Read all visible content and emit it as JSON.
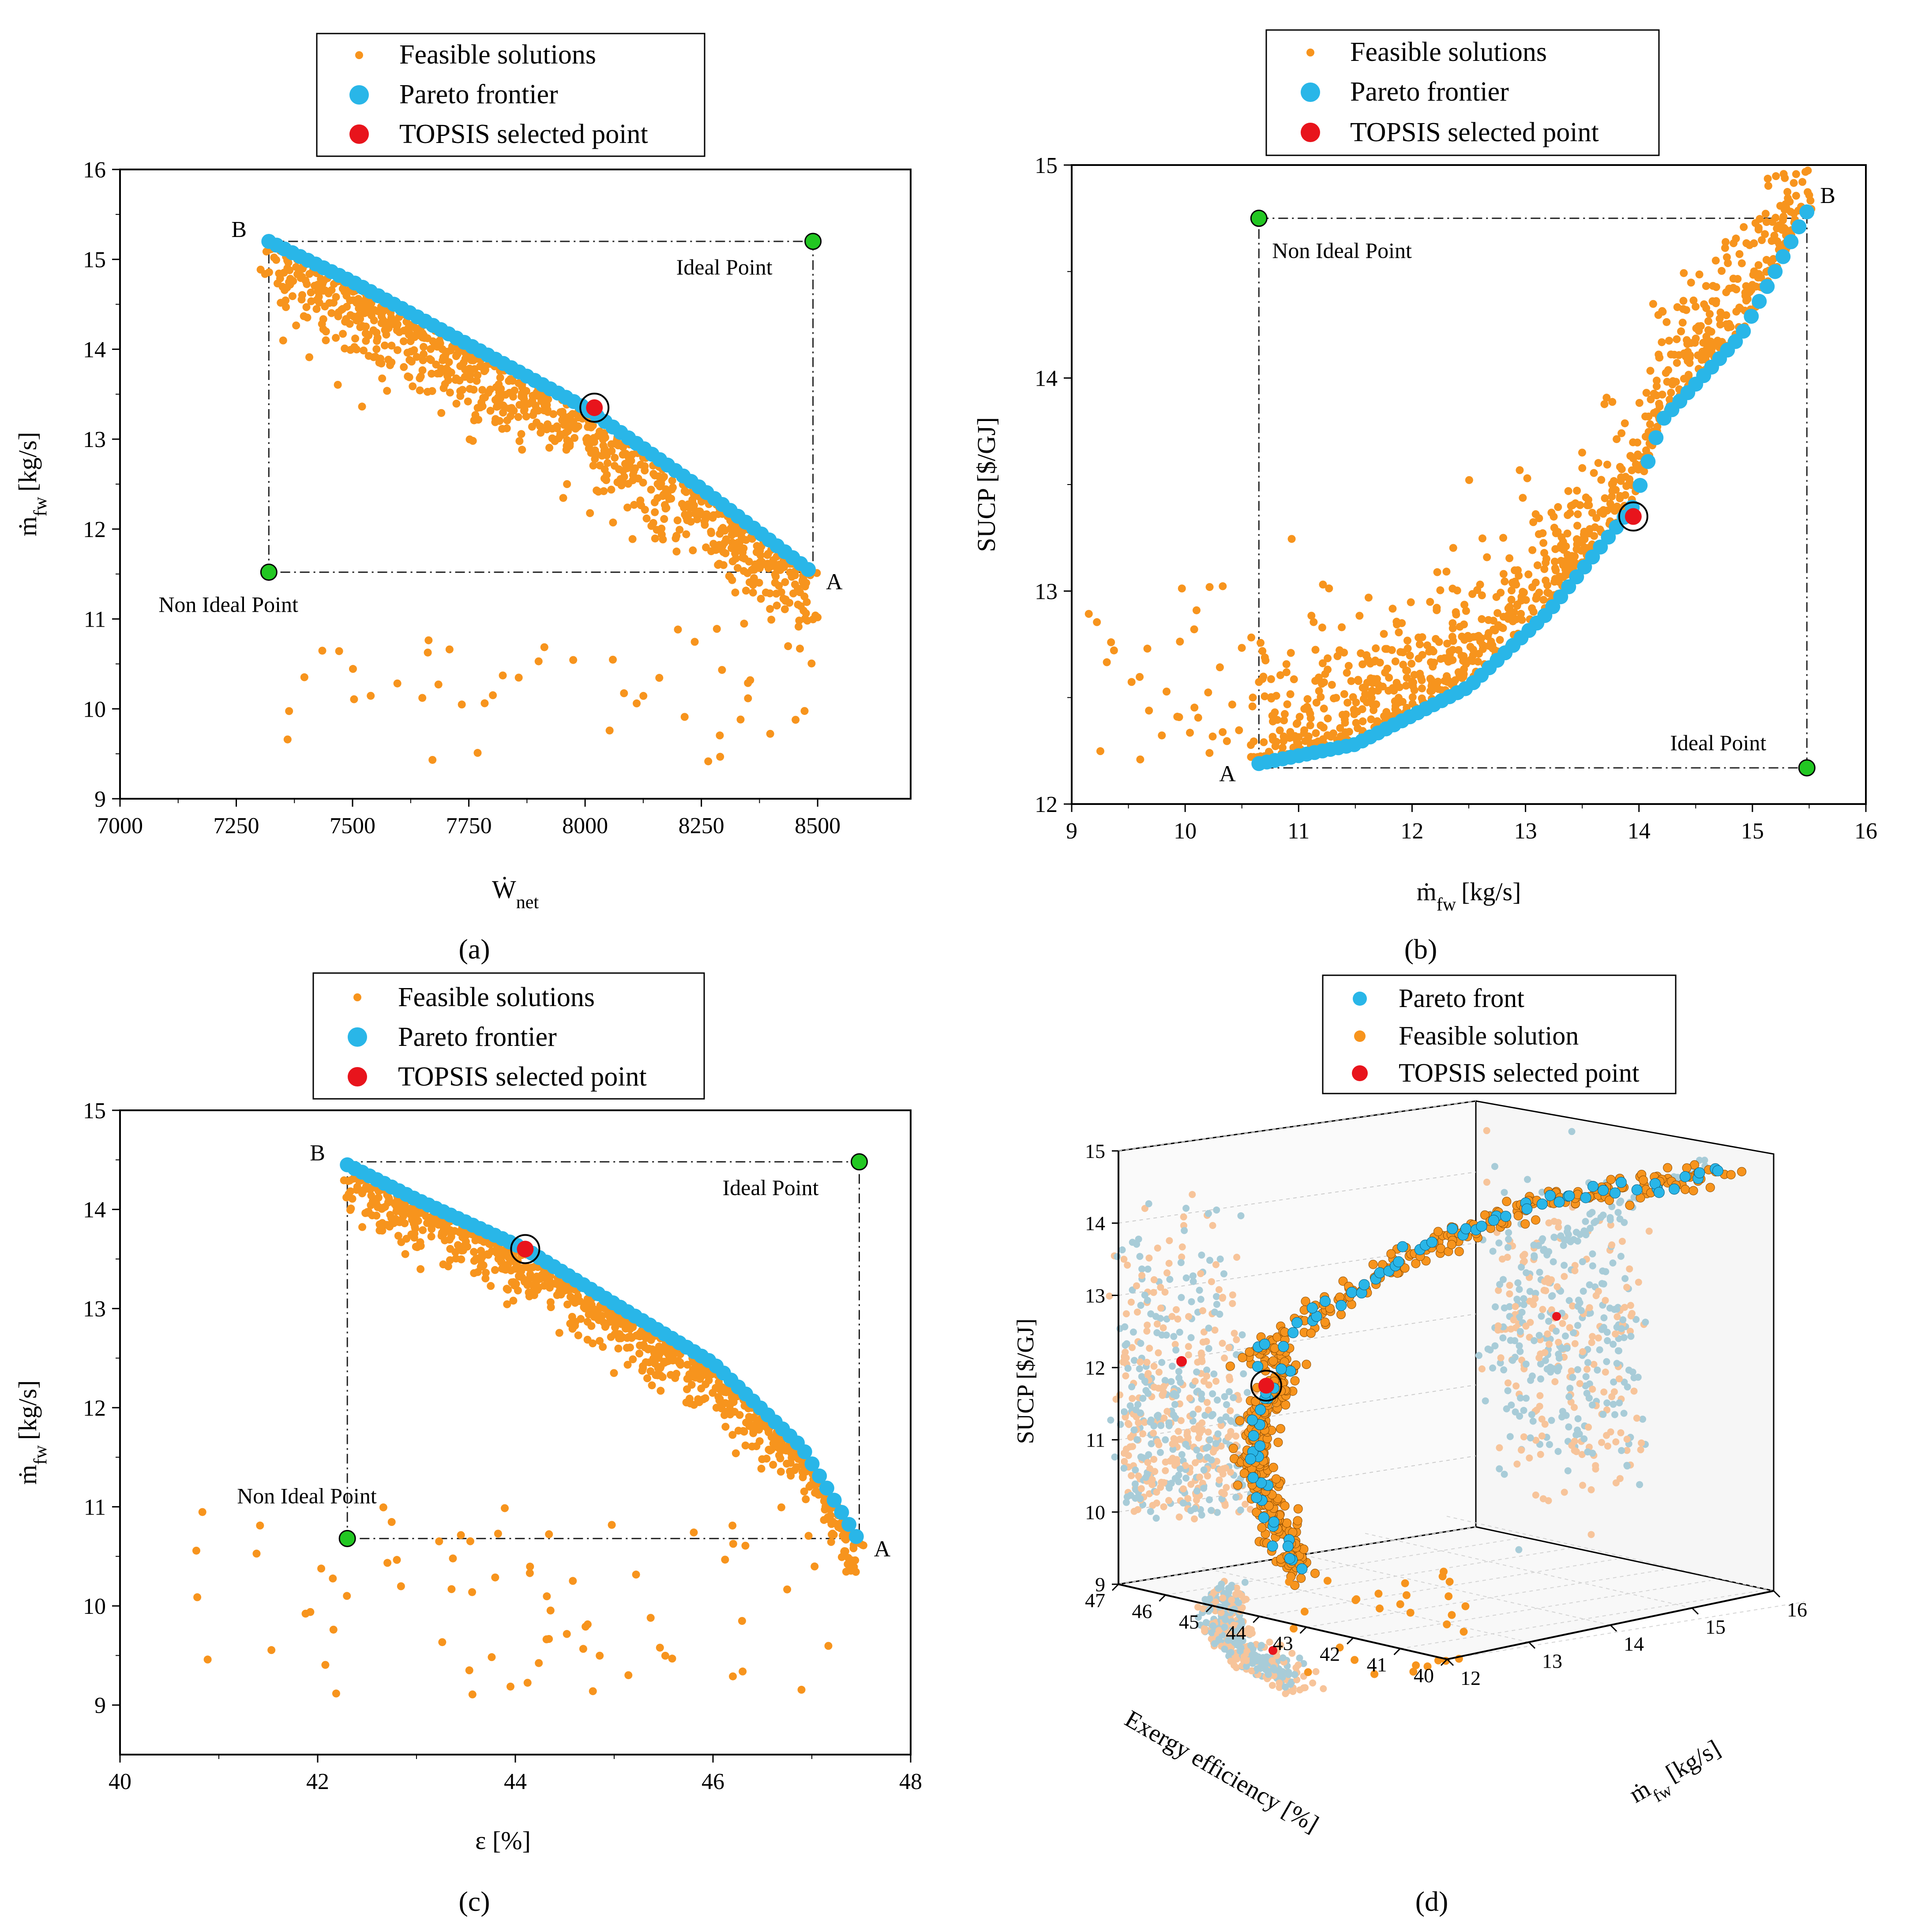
{
  "colors": {
    "feasible": "#f7941d",
    "pareto": "#29b6e8",
    "topsis": "#e8141c",
    "marker_point": "#22c722",
    "frame": "#000000",
    "bg": "#ffffff"
  },
  "chart_data": [
    {
      "panel_label": "(a)",
      "type": "scatter",
      "xlabel_main": "Ẇ",
      "xlabel_sub": "net",
      "ylabel_main": "ṁ",
      "ylabel_sub": "fw",
      "ylabel_unit": "[kg/s]",
      "xlim": [
        7000,
        8700
      ],
      "ylim": [
        9,
        16
      ],
      "xticks": [
        7000,
        7250,
        7500,
        7750,
        8000,
        8250,
        8500
      ],
      "yticks": [
        9,
        10,
        11,
        12,
        13,
        14,
        15,
        16
      ],
      "legend": [
        "Feasible solutions",
        "Pareto frontier",
        "TOPSIS selected point"
      ],
      "frontier": {
        "x": [
          7320,
          7500,
          7750,
          8000,
          8250,
          8480
        ],
        "y": [
          15.2,
          14.75,
          14.05,
          13.35,
          12.45,
          11.55
        ]
      },
      "feasible_band": {
        "width": 0.9,
        "bias": -1,
        "tail_cloud": {
          "xrange": [
            7350,
            8480
          ],
          "yrange": [
            9.4,
            10.9
          ],
          "n": 45
        }
      },
      "topsis": {
        "x": 8020,
        "y": 13.35
      },
      "ideal_point": {
        "x": 8490,
        "y": 15.2,
        "label": "Ideal Point"
      },
      "non_ideal_point": {
        "x": 7320,
        "y": 11.52,
        "label": "Non Ideal Point"
      },
      "point_A": {
        "x": 8480,
        "y": 11.55,
        "label": "A"
      },
      "point_B": {
        "x": 7320,
        "y": 15.2,
        "label": "B"
      }
    },
    {
      "panel_label": "(b)",
      "type": "scatter",
      "xlabel_main": "ṁ",
      "xlabel_sub": "fw",
      "xlabel_unit": "[kg/s]",
      "ylabel_main": "SUCP [$/GJ]",
      "xlim": [
        9,
        16
      ],
      "ylim": [
        12,
        15
      ],
      "xticks": [
        9,
        10,
        11,
        12,
        13,
        14,
        15,
        16
      ],
      "yticks": [
        12,
        13,
        14,
        15
      ],
      "legend": [
        "Feasible solutions",
        "Pareto frontier",
        "TOPSIS selected point"
      ],
      "frontier": {
        "x": [
          10.65,
          11.5,
          12.5,
          13.2,
          13.95,
          14.2,
          14.9,
          15.48
        ],
        "y": [
          12.19,
          12.28,
          12.55,
          12.9,
          13.4,
          13.8,
          14.2,
          14.78
        ]
      },
      "feasible_band": {
        "width": 0.55,
        "bias": 1,
        "tail_cloud": {
          "xrange": [
            9.1,
            10.6
          ],
          "yrange": [
            12.2,
            13.15
          ],
          "n": 35
        }
      },
      "topsis": {
        "x": 13.95,
        "y": 13.35
      },
      "ideal_point": {
        "x": 15.48,
        "y": 12.17,
        "label": "Ideal Point"
      },
      "non_ideal_point": {
        "x": 10.65,
        "y": 14.75,
        "label": "Non Ideal Point"
      },
      "point_A": {
        "x": 10.65,
        "y": 12.19,
        "label": "A"
      },
      "point_B": {
        "x": 15.48,
        "y": 14.78,
        "label": "B"
      }
    },
    {
      "panel_label": "(c)",
      "type": "scatter",
      "xlabel_main": "ε [%]",
      "ylabel_main": "ṁ",
      "ylabel_sub": "fw",
      "ylabel_unit": "[kg/s]",
      "xlim": [
        40,
        48
      ],
      "ylim": [
        8.5,
        15
      ],
      "xticks": [
        40,
        42,
        44,
        46,
        48
      ],
      "yticks": [
        9,
        10,
        11,
        12,
        13,
        14,
        15
      ],
      "legend": [
        "Feasible solutions",
        "Pareto frontier",
        "TOPSIS selected point"
      ],
      "frontier": {
        "x": [
          42.3,
          43.0,
          44.1,
          45.0,
          46.0,
          46.9,
          47.45
        ],
        "y": [
          14.45,
          14.1,
          13.6,
          13.05,
          12.45,
          11.6,
          10.7
        ]
      },
      "feasible_band": {
        "width": 0.55,
        "bias": -1,
        "tail_cloud": {
          "xrange": [
            40.7,
            47.3
          ],
          "yrange": [
            9.1,
            11.0
          ],
          "n": 70
        }
      },
      "topsis": {
        "x": 44.1,
        "y": 13.6
      },
      "ideal_point": {
        "x": 47.48,
        "y": 14.48,
        "label": "Ideal Point"
      },
      "non_ideal_point": {
        "x": 42.3,
        "y": 10.68,
        "label": "Non Ideal Point"
      },
      "point_A": {
        "x": 47.45,
        "y": 10.7,
        "label": "A"
      },
      "point_B": {
        "x": 42.3,
        "y": 14.45,
        "label": "B"
      }
    },
    {
      "panel_label": "(d)",
      "type": "scatter",
      "xlabel_main": "Exergy efficiency [%]",
      "ylabel_main": "ṁ",
      "ylabel_sub": "fw",
      "ylabel_unit": "[kg/s]",
      "zlabel_main": "SUCP [$/GJ]",
      "xticks": [
        40,
        41,
        42,
        43,
        44,
        45,
        46,
        47
      ],
      "yticks": [
        12,
        13,
        14,
        15,
        16
      ],
      "zticks": [
        9,
        10,
        11,
        12,
        13,
        14,
        15
      ],
      "legend": [
        "Pareto front",
        "Feasible solution",
        "TOPSIS selected point"
      ]
    }
  ]
}
